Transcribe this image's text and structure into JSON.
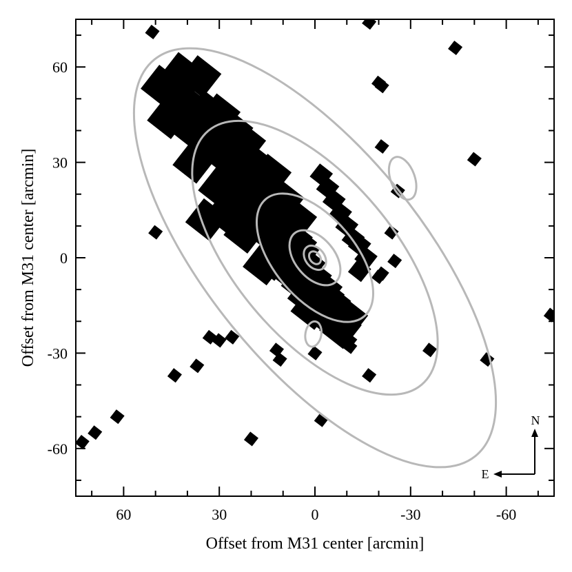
{
  "chart_data": {
    "type": "scatter",
    "xlabel": "Offset from M31 center [arcmin]",
    "ylabel": "Offset from M31 center [arcmin]",
    "xlim": [
      75,
      -75
    ],
    "ylim": [
      -75,
      75
    ],
    "x_ticks": [
      60,
      30,
      0,
      -30,
      -60
    ],
    "y_ticks": [
      60,
      30,
      0,
      -30,
      -60
    ],
    "x_tick_labels": [
      "60",
      "30",
      "0",
      "-30",
      "-60"
    ],
    "y_tick_labels": [
      "60",
      "30",
      "0",
      "-30",
      "-60"
    ],
    "grid": false,
    "compass": {
      "north": "N",
      "east": "E"
    },
    "colors": {
      "fields": "#000000",
      "contours": "#b8b8b8"
    },
    "disk_fields": [
      [
        42,
        58
      ],
      [
        36,
        57
      ],
      [
        44,
        52
      ],
      [
        40,
        48
      ],
      [
        34,
        46
      ],
      [
        38,
        40
      ],
      [
        30,
        45
      ],
      [
        26,
        40
      ],
      [
        32,
        36
      ],
      [
        28,
        32
      ],
      [
        22,
        36
      ],
      [
        26,
        26
      ],
      [
        20,
        30
      ],
      [
        30,
        22
      ],
      [
        24,
        20
      ],
      [
        18,
        24
      ],
      [
        14,
        20
      ],
      [
        20,
        16
      ],
      [
        16,
        12
      ],
      [
        12,
        14
      ],
      [
        8,
        10
      ],
      [
        12,
        6
      ],
      [
        6,
        4
      ],
      [
        10,
        2
      ],
      [
        4,
        -2
      ],
      [
        8,
        -4
      ],
      [
        4,
        -8
      ],
      [
        34,
        12
      ],
      [
        46,
        44
      ],
      [
        48,
        54
      ],
      [
        16,
        -2
      ],
      [
        22,
        8
      ],
      [
        10,
        18
      ],
      [
        6,
        12
      ],
      [
        14,
        26
      ],
      [
        2,
        -12
      ],
      [
        28,
        14
      ],
      [
        38,
        30
      ],
      [
        -2,
        -10
      ],
      [
        1,
        -16
      ],
      [
        -4,
        -18
      ],
      [
        -8,
        -22
      ],
      [
        -6,
        -20
      ],
      [
        -10,
        -19
      ]
    ],
    "minor_axis_strip": [
      [
        -2,
        26
      ],
      [
        -4,
        22
      ],
      [
        -6,
        18
      ],
      [
        -8,
        14
      ],
      [
        -10,
        10
      ],
      [
        -12,
        6
      ],
      [
        -14,
        4
      ],
      [
        -16,
        0
      ],
      [
        -14,
        -4
      ]
    ],
    "major_axis_strip": [
      [
        4,
        6
      ],
      [
        2,
        2
      ],
      [
        0,
        -2
      ],
      [
        -2,
        -6
      ],
      [
        -4,
        -10
      ],
      [
        -6,
        -12
      ],
      [
        -8,
        -14
      ]
    ],
    "outer_fields": [
      [
        51,
        71
      ],
      [
        -17,
        74
      ],
      [
        -20,
        55
      ],
      [
        -21,
        54
      ],
      [
        -44,
        66
      ],
      [
        -50,
        31
      ],
      [
        -21,
        35
      ],
      [
        -26,
        21
      ],
      [
        -24,
        8
      ],
      [
        -25,
        -1
      ],
      [
        -21,
        -5
      ],
      [
        -20,
        -6
      ],
      [
        35,
        11
      ],
      [
        50,
        8
      ],
      [
        4,
        -5
      ],
      [
        13,
        -5
      ],
      [
        33,
        -25
      ],
      [
        30,
        -26
      ],
      [
        26,
        -25
      ],
      [
        37,
        -34
      ],
      [
        12,
        -29
      ],
      [
        11,
        -32
      ],
      [
        -11,
        -26
      ],
      [
        -11,
        -28
      ],
      [
        0,
        -30
      ],
      [
        -17,
        -37
      ],
      [
        -36,
        -29
      ],
      [
        -54,
        -32
      ],
      [
        -74,
        -18
      ],
      [
        20,
        -57
      ],
      [
        -2,
        -51
      ],
      [
        44,
        -37
      ],
      [
        62,
        -50
      ],
      [
        69,
        -55
      ],
      [
        73,
        -58
      ]
    ],
    "contour_center": [
      0,
      0
    ],
    "contours": [
      {
        "a": 2.2,
        "b": 1.6,
        "angle_deg": 52
      },
      {
        "a": 4.2,
        "b": 3.0,
        "angle_deg": 52
      },
      {
        "a": 10.0,
        "b": 6.2,
        "angle_deg": 50
      },
      {
        "a": 24.0,
        "b": 12.8,
        "angle_deg": 50
      },
      {
        "a": 52.0,
        "b": 25.0,
        "angle_deg": 50
      },
      {
        "a": 80.0,
        "b": 33.8,
        "angle_deg": 51
      }
    ],
    "satellite_contours": [
      {
        "x": -27.5,
        "y": 25,
        "a": 7,
        "b": 3.8,
        "angle_deg": 70
      },
      {
        "x": 0.5,
        "y": -24,
        "a": 4.0,
        "b": 2.5,
        "angle_deg": 100
      }
    ]
  }
}
